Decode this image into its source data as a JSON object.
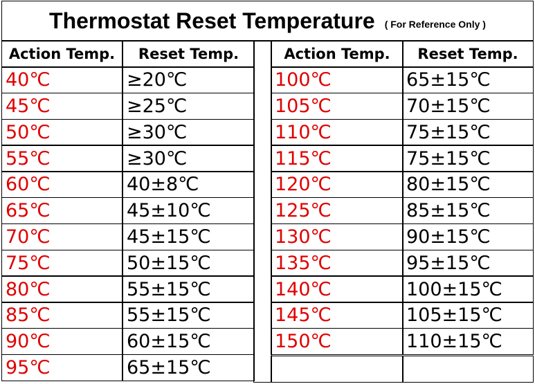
{
  "header": {
    "title": "Thermostat Reset Temperature",
    "subtitle": "( For Reference Only )"
  },
  "tables": [
    {
      "columns": [
        "Action Temp.",
        "Reset Temp."
      ],
      "rows": [
        [
          "40℃",
          "≥20℃"
        ],
        [
          "45℃",
          "≥25℃"
        ],
        [
          "50℃",
          "≥30℃"
        ],
        [
          "55℃",
          "≥30℃"
        ],
        [
          "60℃",
          "40±8℃"
        ],
        [
          "65℃",
          "45±10℃"
        ],
        [
          "70℃",
          "45±15℃"
        ],
        [
          "75℃",
          "50±15℃"
        ],
        [
          "80℃",
          "55±15℃"
        ],
        [
          "85℃",
          "55±15℃"
        ],
        [
          "90℃",
          "60±15℃"
        ],
        [
          "95℃",
          "65±15℃"
        ]
      ]
    },
    {
      "columns": [
        "Action Temp.",
        "Reset Temp."
      ],
      "rows": [
        [
          "100℃",
          "65±15℃"
        ],
        [
          "105℃",
          "70±15℃"
        ],
        [
          "110℃",
          "75±15℃"
        ],
        [
          "115℃",
          "75±15℃"
        ],
        [
          "120℃",
          "80±15℃"
        ],
        [
          "125℃",
          "85±15℃"
        ],
        [
          "130℃",
          "90±15℃"
        ],
        [
          "135℃",
          "95±15℃"
        ],
        [
          "140℃",
          "100±15℃"
        ],
        [
          "145℃",
          "105±15℃"
        ],
        [
          "150℃",
          "110±15℃"
        ]
      ]
    }
  ]
}
